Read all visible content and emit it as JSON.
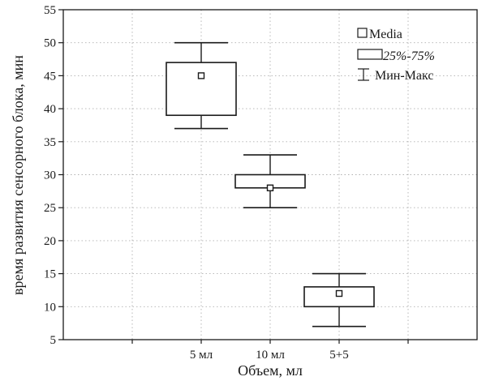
{
  "chart_data": {
    "type": "box",
    "title": "",
    "xlabel": "Объем, мл",
    "ylabel": "время развития сенсорного блока, мин",
    "categories": [
      "5 мл",
      "10 мл",
      "5+5"
    ],
    "ylim": [
      5,
      55
    ],
    "yticks": [
      5,
      10,
      15,
      20,
      25,
      30,
      35,
      40,
      45,
      50,
      55
    ],
    "ytick_labels": [
      "5",
      "10",
      "15",
      "20",
      "25",
      "30",
      "35",
      "40",
      "45",
      "50",
      "55"
    ],
    "x_slots": 6,
    "category_slots": [
      2,
      3,
      4
    ],
    "grid": true,
    "boxes": [
      {
        "category": "5 мл",
        "min": 37,
        "q1": 39,
        "median": 45,
        "q3": 47,
        "max": 50
      },
      {
        "category": "10 мл",
        "min": 25,
        "q1": 28,
        "median": 28,
        "q3": 30,
        "max": 33
      },
      {
        "category": "5+5",
        "min": 7,
        "q1": 10,
        "median": 12,
        "q3": 13,
        "max": 15
      }
    ],
    "legend": {
      "position": "top-right",
      "entries": [
        {
          "symbol": "median-square",
          "label": "Media"
        },
        {
          "symbol": "box",
          "label": "25%-75%"
        },
        {
          "symbol": "whisker",
          "label": "Мин-Макс"
        }
      ]
    },
    "colors": {
      "stroke": "#1a1a1a",
      "grid": "#b0b0b0",
      "background": "#ffffff"
    }
  }
}
